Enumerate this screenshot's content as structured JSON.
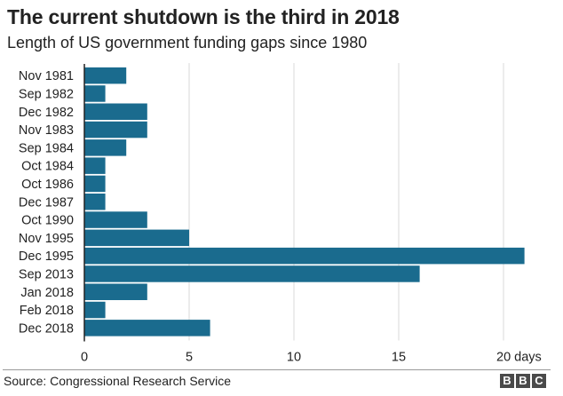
{
  "chart_data": {
    "type": "bar",
    "orientation": "horizontal",
    "title": "The current shutdown is the third in 2018",
    "subtitle": "Length of US government funding gaps since 1980",
    "xlabel": "days",
    "ylabel": "",
    "xlim": [
      0,
      22
    ],
    "x_ticks": [
      0,
      5,
      10,
      15,
      20
    ],
    "x_tick_labels": [
      "0",
      "5",
      "10",
      "15",
      "20 days"
    ],
    "grid": true,
    "categories": [
      "Nov 1981",
      "Sep 1982",
      "Dec 1982",
      "Nov 1983",
      "Sep 1984",
      "Oct 1984",
      "Oct 1986",
      "Dec 1987",
      "Oct 1990",
      "Nov 1995",
      "Dec 1995",
      "Sep 2013",
      "Jan 2018",
      "Feb 2018",
      "Dec 2018"
    ],
    "values": [
      2,
      1,
      3,
      3,
      2,
      1,
      1,
      1,
      3,
      5,
      21,
      16,
      3,
      1,
      6
    ],
    "bar_color": "#1a6b8e",
    "source": "Source: Congressional Research Service"
  },
  "brand": {
    "letters": [
      "B",
      "B",
      "C"
    ]
  }
}
